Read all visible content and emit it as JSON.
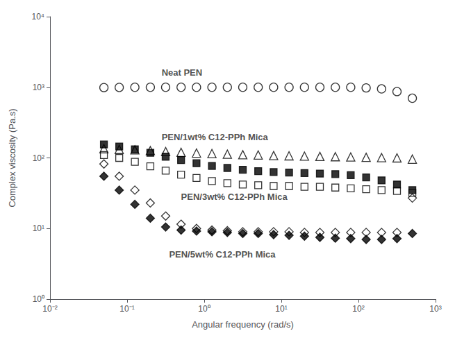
{
  "chart_data": {
    "type": "scatter",
    "xlabel": "Angular frequency (rad/s)",
    "ylabel": "Complex viscosity (Pa.s)",
    "log": true,
    "grid": false,
    "xlim": [
      0.01,
      1000
    ],
    "ylim": [
      1,
      10000
    ],
    "xticks": [
      {
        "value": 0.01,
        "label": "10⁻²"
      },
      {
        "value": 0.1,
        "label": "10⁻¹"
      },
      {
        "value": 1,
        "label": "10⁰"
      },
      {
        "value": 10,
        "label": "10¹"
      },
      {
        "value": 100,
        "label": "10²"
      },
      {
        "value": 1000,
        "label": "10³"
      }
    ],
    "yticks": [
      {
        "value": 1,
        "label": "10⁰"
      },
      {
        "value": 10,
        "label": "10¹"
      },
      {
        "value": 100,
        "label": "10²"
      },
      {
        "value": 1000,
        "label": "10³"
      },
      {
        "value": 10000,
        "label": "10⁴"
      }
    ],
    "x": [
      0.05,
      0.079,
      0.126,
      0.2,
      0.316,
      0.501,
      0.794,
      1.259,
      1.995,
      3.162,
      5.012,
      7.943,
      12.59,
      19.95,
      31.62,
      50.12,
      79.43,
      125.9,
      199.5,
      316.2,
      500.0
    ],
    "series": [
      {
        "marker": "open circle",
        "color": "#000000",
        "values": [
          990,
          995,
          1000,
          1000,
          1000,
          1000,
          1000,
          1000,
          1000,
          1000,
          1000,
          1000,
          1000,
          1000,
          1000,
          1000,
          1000,
          980,
          950,
          870,
          700
        ]
      },
      {
        "marker": "open triangle",
        "color": "#000000",
        "values": [
          135,
          132,
          130,
          127,
          123,
          120,
          117,
          115,
          113,
          111,
          110,
          108,
          107,
          106,
          105,
          104,
          103,
          102,
          101,
          100,
          96
        ]
      },
      {
        "marker": "filled square",
        "color": "#000000",
        "values": [
          155,
          145,
          132,
          118,
          104,
          93,
          84,
          77,
          72,
          68,
          65,
          63,
          62,
          61,
          60,
          59,
          57,
          53,
          48,
          42,
          35
        ]
      },
      {
        "marker": "open square",
        "color": "#000000",
        "values": [
          110,
          100,
          88,
          76,
          66,
          58,
          52,
          47,
          44,
          42,
          41,
          40,
          40,
          39,
          39,
          38,
          37,
          36,
          35,
          34,
          32
        ]
      },
      {
        "marker": "open diamond",
        "color": "#000000",
        "values": [
          82,
          55,
          35,
          23,
          15,
          11.5,
          10.0,
          9.5,
          9.3,
          9.0,
          9.0,
          9.0,
          9.0,
          8.8,
          8.8,
          8.8,
          8.8,
          8.8,
          8.8,
          8.8,
          27
        ]
      },
      {
        "marker": "filled diamond",
        "color": "#000000",
        "values": [
          55,
          35,
          22,
          14,
          10.5,
          9.5,
          9.2,
          9.0,
          8.8,
          8.5,
          8.5,
          8.2,
          8.0,
          7.8,
          7.5,
          7.3,
          7.2,
          7.0,
          7.0,
          7.2,
          8.5
        ]
      }
    ],
    "annotations": [
      {
        "text": "Neat PEN",
        "x": 0.28,
        "y": 1600
      },
      {
        "text": "PEN/1wt% C12-PPh Mica",
        "x": 0.28,
        "y": 195
      },
      {
        "text": "PEN/3wt% C12-PPh Mica",
        "x": 0.5,
        "y": 28
      },
      {
        "text": "PEN/5wt% C12-PPh Mica",
        "x": 0.35,
        "y": 4.3
      }
    ]
  }
}
